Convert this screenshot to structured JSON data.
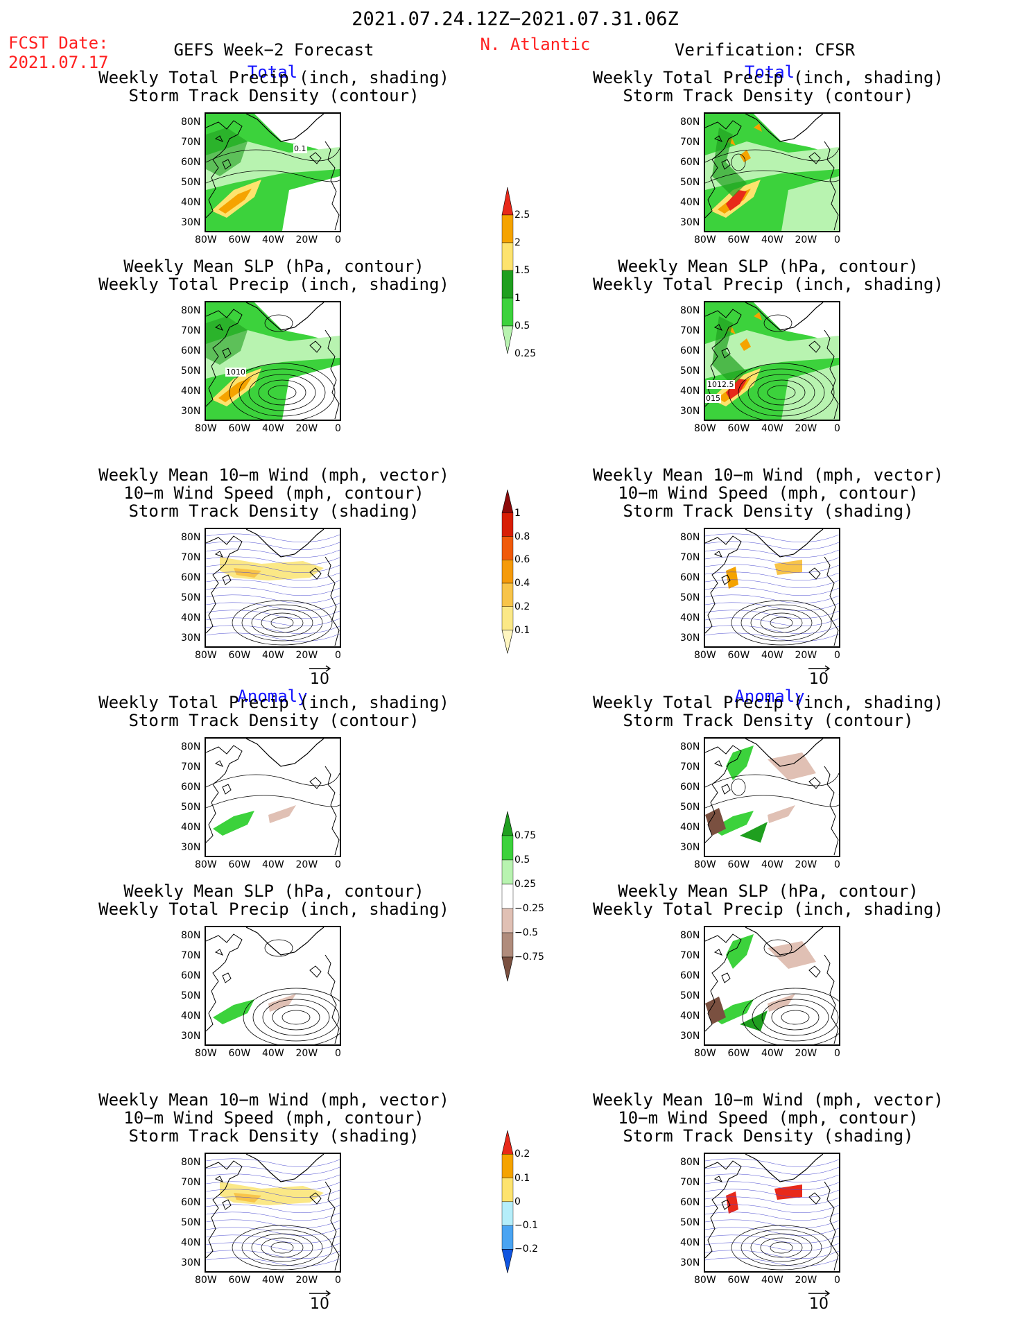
{
  "header": {
    "period": "2021.07.24.12Z−2021.07.31.06Z",
    "fcst_date_label": "FCST Date:",
    "fcst_date_value": "2021.07.17",
    "forecast_title": "GEFS Week−2 Forecast",
    "region": "N. Atlantic",
    "verification": "Verification: CFSR"
  },
  "sections": {
    "total": "Total",
    "anomaly": "Anomaly"
  },
  "titles": {
    "precip_track_1": "Weekly Total Precip (inch, shading)",
    "precip_track_2": "Storm Track Density (contour)",
    "slp_precip_1": "Weekly Mean SLP (hPa, contour)",
    "slp_precip_2": "Weekly Total Precip (inch, shading)",
    "wind_1": "Weekly Mean 10−m Wind (mph, vector)",
    "wind_2": "10−m Wind Speed (mph, contour)",
    "wind_3": "Storm Track Density (shading)"
  },
  "axes": {
    "lat_ticks": [
      "80N",
      "70N",
      "60N",
      "50N",
      "40N",
      "30N"
    ],
    "lon_ticks": [
      "80W",
      "60W",
      "40W",
      "20W",
      "0"
    ]
  },
  "vector_reference": "10",
  "contour_labels": {
    "gefs_track": "0.1",
    "gefs_slp": "1010",
    "cfsr_slp_a": "1012.5",
    "cfsr_slp_b": "015"
  },
  "colorbars": {
    "precip_total": {
      "labels": [
        "2.5",
        "2",
        "1.5",
        "1",
        "0.5",
        "0.25"
      ],
      "colors": [
        "#e8291a",
        "#f5a300",
        "#fde36e",
        "#1f9f1f",
        "#3cd23c",
        "#b8f3b0"
      ]
    },
    "track_total": {
      "labels": [
        "1",
        "0.8",
        "0.6",
        "0.4",
        "0.2",
        "0.1"
      ],
      "colors": [
        "#8c0a0a",
        "#d81e05",
        "#f05a0a",
        "#f59a0a",
        "#f8c449",
        "#fbe886",
        "#fff6c0"
      ]
    },
    "precip_anom": {
      "labels": [
        "0.75",
        "0.5",
        "0.25",
        "−0.25",
        "−0.5",
        "−0.75"
      ],
      "colors": [
        "#1f9f1f",
        "#3cd23c",
        "#b8f3b0",
        "#ffffff",
        "#e0c0b4",
        "#b08c7c",
        "#7a5040"
      ]
    },
    "track_anom": {
      "labels": [
        "0.2",
        "0.1",
        "0",
        "−0.1",
        "−0.2"
      ],
      "colors": [
        "#e8291a",
        "#f5a300",
        "#fde36e",
        "#b5eefa",
        "#4aa4f2",
        "#1055e0"
      ]
    }
  }
}
